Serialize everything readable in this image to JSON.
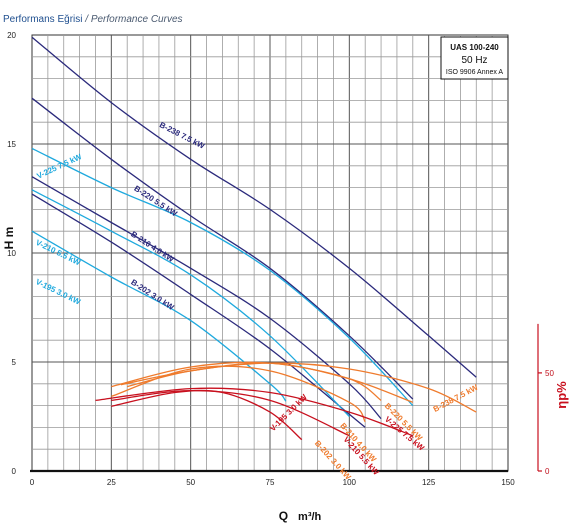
{
  "header": {
    "title_tr": "Performans Eğrisi",
    "separator": " / ",
    "title_en": "Performance Curves"
  },
  "info_box": {
    "model": "UAS 100-240",
    "frequency": "50 Hz",
    "standard": "ISO 9906 Annex A"
  },
  "colors": {
    "dark": "#2b2a7c",
    "light": "#1ea9de",
    "orange": "#ef7b2d",
    "red": "#c8101e"
  },
  "chart_data": {
    "type": "line",
    "xlabel": "Q",
    "xunit": "m³/h",
    "ylabel": "H m",
    "y2label": "ηp%",
    "xlim": [
      0,
      150
    ],
    "ylim": [
      0,
      20
    ],
    "y2lim": [
      0,
      100
    ],
    "xticks": [
      0,
      25,
      50,
      75,
      100,
      125,
      150
    ],
    "yticks": [
      0,
      5,
      10,
      15,
      20
    ],
    "y2ticks": [
      0,
      50
    ],
    "grid": true,
    "head_curves": [
      {
        "name": "B-238 7.5 kW",
        "color": "dark",
        "x": [
          0,
          25,
          50,
          75,
          100,
          125,
          140
        ],
        "y": [
          19.9,
          16.9,
          14.3,
          12.0,
          9.3,
          6.2,
          4.3
        ],
        "label_pos": [
          40,
          15.8
        ],
        "label_angle": 27
      },
      {
        "name": "B-220 5.5 kW",
        "color": "dark",
        "x": [
          0,
          25,
          50,
          75,
          100,
          120
        ],
        "y": [
          17.1,
          14.3,
          11.7,
          9.3,
          6.2,
          3.3
        ],
        "label_pos": [
          32,
          12.9
        ],
        "label_angle": 33
      },
      {
        "name": "B-210 4.0 kW",
        "color": "dark",
        "x": [
          0,
          25,
          50,
          75,
          100,
          110
        ],
        "y": [
          13.5,
          11.4,
          9.3,
          7.0,
          4.0,
          2.4
        ],
        "label_pos": [
          31,
          10.8
        ],
        "label_angle": 33
      },
      {
        "name": "B-202 3.0 kW",
        "color": "dark",
        "x": [
          0,
          25,
          50,
          75,
          100,
          105
        ],
        "y": [
          12.7,
          10.5,
          8.1,
          5.6,
          2.6,
          2.0
        ],
        "label_pos": [
          31,
          8.6
        ],
        "label_angle": 33
      },
      {
        "name": "V-225 7.5 kW",
        "color": "light",
        "x": [
          0,
          25,
          50,
          75,
          100,
          120
        ],
        "y": [
          14.8,
          13.0,
          11.4,
          9.2,
          6.1,
          3.0
        ],
        "label_pos": [
          2,
          13.4
        ],
        "label_angle": -25
      },
      {
        "name": "V-210 5.5 kW",
        "color": "light",
        "x": [
          0,
          25,
          50,
          75,
          100
        ],
        "y": [
          12.9,
          11.0,
          9.0,
          6.2,
          2.5
        ],
        "label_pos": [
          1,
          10.4
        ],
        "label_angle": 26
      },
      {
        "name": "V-195 3.0 kW",
        "color": "light",
        "x": [
          0,
          25,
          50,
          75,
          80
        ],
        "y": [
          11.0,
          8.9,
          6.9,
          4.0,
          3.2
        ],
        "label_pos": [
          1,
          8.6
        ],
        "label_angle": 26
      }
    ],
    "efficiency_curves": [
      {
        "name": "B-238 7.5 kW",
        "color": "orange",
        "x": [
          30,
          50,
          75,
          100,
          125,
          140
        ],
        "y": [
          43,
          51,
          55,
          52,
          42,
          30
        ],
        "label_pos": [
          127,
          30
        ],
        "label_angle": -28
      },
      {
        "name": "B-220 5.5 kW",
        "color": "orange",
        "x": [
          28,
          50,
          75,
          100,
          120
        ],
        "y": [
          44,
          51,
          55,
          47,
          35
        ],
        "label_pos": [
          111,
          33
        ],
        "label_angle": 45
      },
      {
        "name": "B-210 4.0 kW",
        "color": "orange",
        "x": [
          25,
          50,
          75,
          100,
          110
        ],
        "y": [
          43,
          53,
          55,
          47,
          36
        ],
        "label_pos": [
          97,
          23
        ],
        "label_angle": 48
      },
      {
        "name": "B-202 3.0 kW",
        "color": "orange",
        "x": [
          25,
          50,
          75,
          100,
          105
        ],
        "y": [
          38,
          52,
          51,
          35,
          25
        ],
        "label_pos": [
          89,
          14
        ],
        "label_angle": 48
      },
      {
        "name": "V-225 7.5 kW",
        "color": "red",
        "x": [
          20,
          50,
          75,
          100,
          120
        ],
        "y": [
          36,
          42,
          40,
          30,
          18
        ],
        "label_pos": [
          111,
          26
        ],
        "label_angle": 40
      },
      {
        "name": "V-210 5.5 kW",
        "color": "red",
        "x": [
          25,
          50,
          75,
          100
        ],
        "y": [
          36,
          41,
          36,
          18
        ],
        "label_pos": [
          98,
          16
        ],
        "label_angle": 48
      },
      {
        "name": "V-195 3.0 kW",
        "color": "red",
        "x": [
          25,
          45,
          60,
          75,
          85
        ],
        "y": [
          33,
          40,
          40,
          30,
          16
        ],
        "label_pos": [
          76,
          20
        ],
        "label_angle": -45
      }
    ]
  }
}
